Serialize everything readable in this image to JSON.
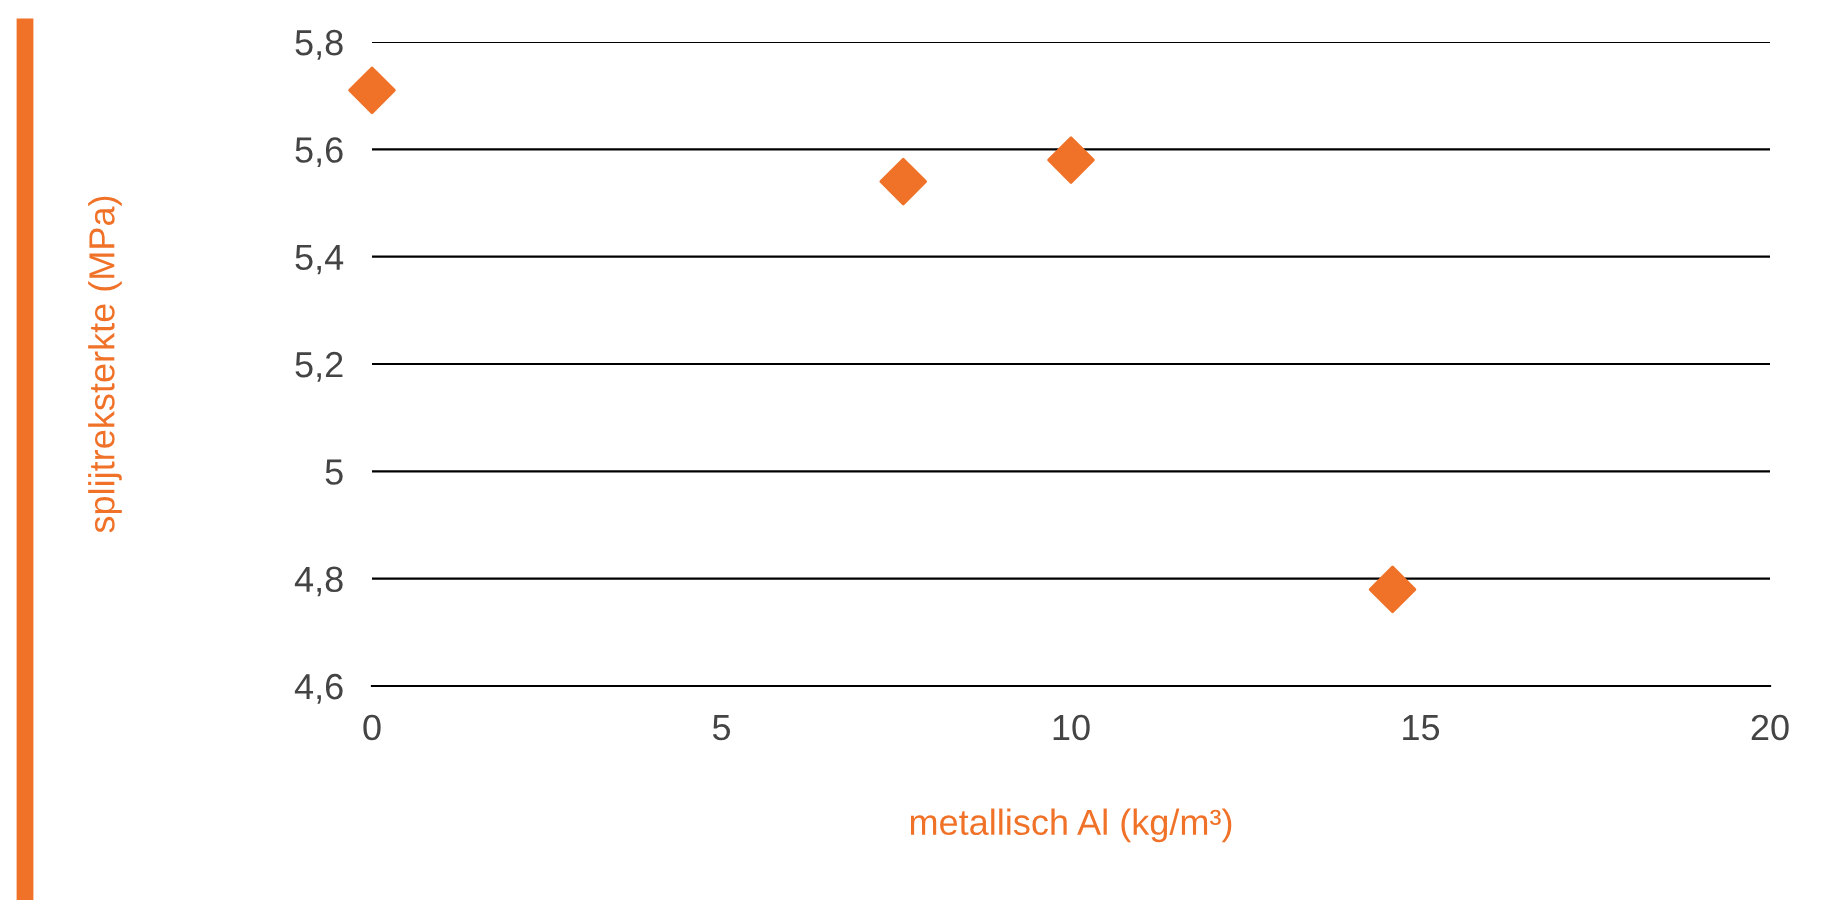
{
  "chart_data": {
    "type": "scatter",
    "xlabel": "metallisch Al (kg/m³)",
    "ylabel": "splijtreksterkte (MPa)",
    "x": [
      0,
      7.6,
      10,
      14.6
    ],
    "series": [
      {
        "color": "#f07228",
        "values": [
          5.71,
          5.54,
          5.58,
          4.78
        ]
      }
    ],
    "marker": "diamond",
    "grid": "y",
    "xlim": [
      0,
      20
    ],
    "xticks": [
      0,
      5,
      10,
      15,
      20
    ],
    "ylim": [
      4.6,
      5.8
    ],
    "yticks": [
      {
        "value": 4.6,
        "label": "4,6"
      },
      {
        "value": 4.8,
        "label": "4,8"
      },
      5,
      {
        "value": 5.2,
        "label": "5,2"
      },
      {
        "value": 5.4,
        "label": "5,4"
      },
      {
        "value": 5.6,
        "label": "5,6"
      },
      {
        "value": 5.8,
        "label": "5,8"
      }
    ]
  }
}
